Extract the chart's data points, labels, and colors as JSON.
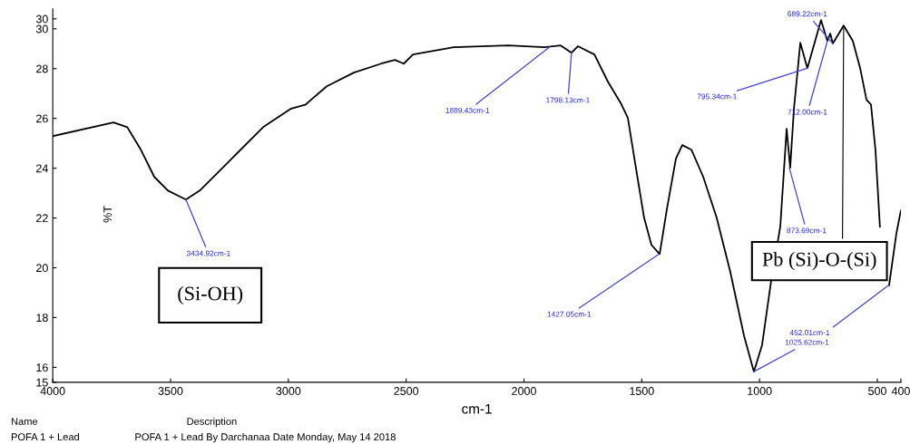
{
  "chart_data": {
    "type": "line",
    "xlabel": "cm-1",
    "ylabel": "%T",
    "x": [
      4000,
      3742,
      3684,
      3626,
      3569,
      3511,
      3435,
      3376,
      3299,
      3222,
      3107,
      2991,
      2926,
      2895,
      2837,
      2722,
      2606,
      2548,
      2510,
      2471,
      2298,
      2067,
      1913,
      1844,
      1798,
      1771,
      1701,
      1644,
      1586,
      1559,
      1528,
      1490,
      1459,
      1424,
      1393,
      1355,
      1328,
      1289,
      1239,
      1182,
      1124,
      1066,
      1024,
      989,
      951,
      912,
      885,
      870,
      854,
      827,
      797,
      739,
      712,
      700,
      689,
      643,
      604,
      573,
      546,
      527,
      508,
      489,
      473,
      450,
      419,
      400
    ],
    "series": [
      {
        "color": "#000000",
        "values": [
          25.29,
          25.84,
          25.65,
          24.74,
          23.65,
          23.1,
          22.74,
          23.1,
          23.83,
          24.56,
          25.65,
          26.38,
          26.56,
          26.82,
          27.29,
          27.84,
          28.2,
          28.35,
          28.2,
          28.57,
          28.86,
          28.93,
          28.86,
          28.93,
          28.64,
          28.9,
          28.57,
          27.48,
          26.56,
          26.02,
          24.2,
          22.01,
          20.92,
          20.55,
          22.37,
          24.38,
          24.93,
          24.74,
          23.65,
          22.01,
          19.83,
          17.27,
          15.82,
          16.91,
          19.46,
          21.65,
          25.58,
          24.02,
          26.38,
          29.04,
          28.02,
          29.95,
          29.11,
          29.41,
          29.01,
          29.73,
          29.11,
          28.02,
          26.75,
          26.56,
          24.74,
          21.65,
          null,
          19.3,
          21.39,
          22.3
        ]
      }
    ],
    "xlim": [
      4000,
      400
    ],
    "xticks": [
      4000,
      3500,
      3000,
      2500,
      2000,
      1500,
      1000,
      500,
      400
    ],
    "ylim": [
      15.4,
      30.4
    ],
    "yticks": [
      {
        "value": 15.4,
        "label": "15"
      },
      16,
      18,
      20,
      22,
      24,
      26,
      28,
      {
        "value": 29.6,
        "label": "30"
      },
      30
    ],
    "grid": false,
    "legend": false,
    "marker": "none",
    "line_style": "solid",
    "annotations": [
      {
        "text": "3434.92cm-1",
        "x": 3434.92,
        "y": 22.74
      },
      {
        "text": "1889.43cm-1",
        "x": 1889.43,
        "y": 28.88
      },
      {
        "text": "1798.13cm-1",
        "x": 1798.13,
        "y": 28.64
      },
      {
        "text": "1427.05cm-1",
        "x": 1427.05,
        "y": 20.55
      },
      {
        "text": "1025.62cm-1",
        "x": 1025.62,
        "y": 15.82
      },
      {
        "text": "873.69cm-1",
        "x": 873.69,
        "y": 24.02
      },
      {
        "text": "795.34cm-1",
        "x": 795.34,
        "y": 28.02
      },
      {
        "text": "712.00cm-1",
        "x": 712.0,
        "y": 29.11
      },
      {
        "text": "689.22cm-1",
        "x": 689.22,
        "y": 29.01
      },
      {
        "text": "452.01cm-1",
        "x": 452.01,
        "y": 19.3
      },
      "(Si-OH)",
      {
        "text": "Pb (Si)-O-(Si)",
        "x": 643,
        "y": 29.73
      },
      "Name",
      "Description",
      "POFA 1 + Lead",
      "POFA 1 + Lead By Darchanaa Date Monday, May 14 2018"
    ]
  }
}
